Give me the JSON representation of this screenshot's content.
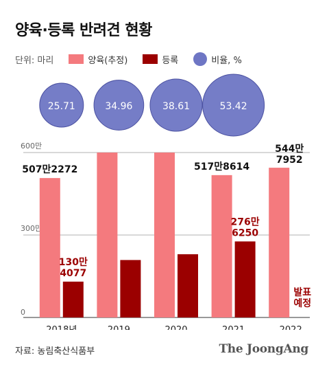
{
  "title": "양육·등록 반려견 현황",
  "legend": {
    "unit": "단위: 마리",
    "items": [
      "양육(추정)",
      "등록",
      "비율, %"
    ]
  },
  "colors": {
    "raised": "#f47a7e",
    "registered": "#9b0000",
    "ratio": "#6e76c4",
    "grid": "#999999"
  },
  "source": "자료: 농림축산식품부",
  "brand": "The JoongAng",
  "chart_data": {
    "type": "bar",
    "categories": [
      "2018년",
      "2019",
      "2020",
      "2021",
      "2022"
    ],
    "ylim": [
      0,
      600
    ],
    "y_ticks": [
      {
        "value": 600,
        "label": "600만"
      },
      {
        "value": 300,
        "label": "300만"
      },
      {
        "value": 0,
        "label": "0"
      }
    ],
    "series": [
      {
        "name": "양육(추정)",
        "values": [
          507.2272,
          600,
          600,
          517.8614,
          544.7952
        ]
      },
      {
        "name": "등록",
        "values": [
          130.4077,
          209,
          230,
          276.625,
          null
        ]
      }
    ],
    "ratio": {
      "name": "비율, %",
      "values": [
        "25.71",
        "34.96",
        "38.61",
        "53.42"
      ]
    },
    "labels": {
      "raised": [
        [
          "507만2272"
        ],
        [],
        [],
        [
          "517만8614"
        ],
        [
          "544만",
          "7952"
        ]
      ],
      "registered": [
        [
          "130만",
          "4077"
        ],
        [],
        [],
        [
          "276만",
          "6250"
        ],
        [
          "발표",
          "예정"
        ]
      ]
    }
  }
}
